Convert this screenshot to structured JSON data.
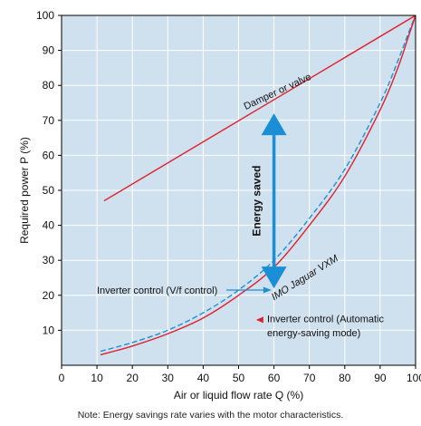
{
  "chart_data": {
    "type": "line",
    "xlabel": "Air or liquid flow rate Q (%)",
    "ylabel": "Required power P (%)",
    "xlim": [
      0,
      100
    ],
    "ylim": [
      0,
      100
    ],
    "xticks": [
      0,
      10,
      20,
      30,
      40,
      50,
      60,
      70,
      80,
      90,
      100
    ],
    "yticks": [
      10,
      20,
      30,
      40,
      50,
      60,
      70,
      80,
      90,
      100
    ],
    "grid": true,
    "background": "#cfe0ee",
    "series": [
      {
        "name": "Damper or valve",
        "style": "solid",
        "color": "#e0202a",
        "x": [
          12,
          100
        ],
        "y": [
          47,
          100
        ]
      },
      {
        "name": "IMO Jaguar VXM",
        "style": "dashed",
        "color": "#1e90d8",
        "x": [
          11,
          20,
          30,
          40,
          50,
          60,
          70,
          80,
          90,
          95,
          98,
          100
        ],
        "y": [
          4,
          6.5,
          10,
          15,
          21.5,
          30,
          42,
          56,
          75,
          87,
          95,
          100
        ]
      },
      {
        "name": "Inverter control (Automatic energy-saving mode)",
        "style": "solid",
        "color": "#e0202a",
        "x": [
          11,
          20,
          30,
          40,
          50,
          60,
          70,
          80,
          90,
          95,
          98,
          100
        ],
        "y": [
          3,
          5.5,
          9,
          13.5,
          20,
          28,
          40,
          54,
          73,
          85,
          94,
          100
        ]
      }
    ],
    "energy_arrow": {
      "x": 60,
      "y_top": 72,
      "y_bottom": 22,
      "color": "#1a8fd6"
    },
    "annotations": {
      "damper": "Damper or valve",
      "jaguar": "IMO Jaguar VXM",
      "energy_saved": "Energy saved",
      "inverter_vf": "Inverter control (V/f control)",
      "inverter_auto_line1": "Inverter control (Automatic",
      "inverter_auto_line2": "energy-saving mode)"
    }
  },
  "note": "Note: Energy savings rate varies with the motor characteristics."
}
